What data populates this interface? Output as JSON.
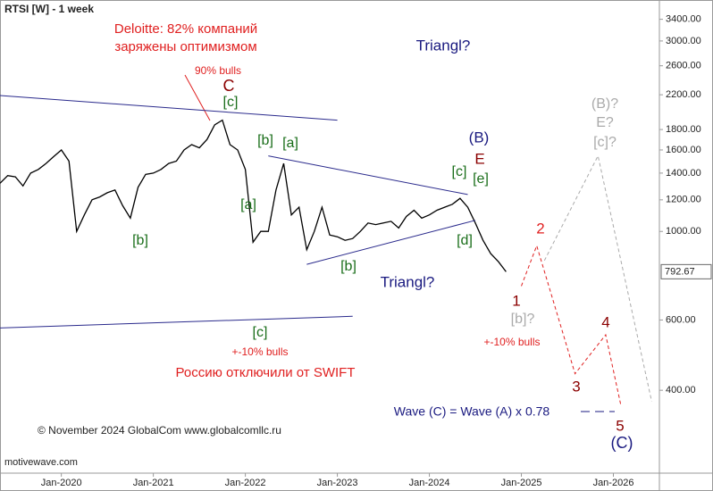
{
  "chart_data": {
    "type": "line",
    "title": "RTSI [W] - 1 week",
    "footer": "© November 2024 GlobalCom www.globalcomllc.ru",
    "watermark": "motivewave.com",
    "log_scale": true,
    "grid": false,
    "color": "#000000",
    "x": [
      "2019-05",
      "2019-06",
      "2019-07",
      "2019-08",
      "2019-09",
      "2019-10",
      "2019-11",
      "2019-12",
      "2020-01",
      "2020-02",
      "2020-03",
      "2020-04",
      "2020-05",
      "2020-06",
      "2020-07",
      "2020-08",
      "2020-09",
      "2020-10",
      "2020-11",
      "2020-12",
      "2021-01",
      "2021-02",
      "2021-03",
      "2021-04",
      "2021-05",
      "2021-06",
      "2021-07",
      "2021-08",
      "2021-09",
      "2021-10",
      "2021-11",
      "2021-12",
      "2022-01",
      "2022-02",
      "2022-03",
      "2022-04",
      "2022-05",
      "2022-06",
      "2022-07",
      "2022-08",
      "2022-09",
      "2022-10",
      "2022-11",
      "2022-12",
      "2023-01",
      "2023-02",
      "2023-03",
      "2023-04",
      "2023-05",
      "2023-06",
      "2023-07",
      "2023-08",
      "2023-09",
      "2023-10",
      "2023-11",
      "2023-12",
      "2024-01",
      "2024-02",
      "2024-03",
      "2024-04",
      "2024-05",
      "2024-06",
      "2024-07",
      "2024-08",
      "2024-09",
      "2024-10",
      "2024-11"
    ],
    "values": [
      1320,
      1380,
      1370,
      1300,
      1400,
      1430,
      1480,
      1540,
      1600,
      1500,
      1000,
      1100,
      1200,
      1220,
      1250,
      1270,
      1160,
      1080,
      1290,
      1390,
      1400,
      1430,
      1480,
      1500,
      1600,
      1650,
      1620,
      1700,
      1850,
      1900,
      1650,
      1600,
      1430,
      940,
      1000,
      1000,
      1270,
      1480,
      1100,
      1150,
      900,
      1000,
      1150,
      980,
      970,
      950,
      960,
      1000,
      1050,
      1040,
      1050,
      1060,
      1020,
      1090,
      1130,
      1080,
      1100,
      1130,
      1150,
      1170,
      1210,
      1150,
      1050,
      950,
      880,
      840,
      792.67
    ],
    "xlim": [
      "2019-05",
      "2026-07"
    ],
    "xticks": [
      {
        "value": "2020-01",
        "label": "Jan-2020"
      },
      {
        "value": "2021-01",
        "label": "Jan-2021"
      },
      {
        "value": "2022-01",
        "label": "Jan-2022"
      },
      {
        "value": "2023-01",
        "label": "Jan-2023"
      },
      {
        "value": "2024-01",
        "label": "Jan-2024"
      },
      {
        "value": "2025-01",
        "label": "Jan-2025"
      },
      {
        "value": "2026-01",
        "label": "Jan-2026"
      }
    ],
    "ylim": [
      248,
      3800
    ],
    "yticks": [
      {
        "value": 400,
        "label": "400.00"
      },
      {
        "value": 600,
        "label": "600.00"
      },
      {
        "value": 1000,
        "label": "1000.00"
      },
      {
        "value": 1200,
        "label": "1200.00"
      },
      {
        "value": 1400,
        "label": "1400.00"
      },
      {
        "value": 1600,
        "label": "1600.00"
      },
      {
        "value": 1800,
        "label": "1800.00"
      },
      {
        "value": 2200,
        "label": "2200.00"
      },
      {
        "value": 2600,
        "label": "2600.00"
      },
      {
        "value": 3000,
        "label": "3000.00"
      },
      {
        "value": 3400,
        "label": "3400.00"
      }
    ],
    "trendlines": [
      {
        "x": [
          "2019-05",
          "2023-01"
        ],
        "values": [
          2190,
          1900
        ],
        "color": "#2a2a8c"
      },
      {
        "x": [
          "2019-05",
          "2023-03"
        ],
        "values": [
          573,
          613
        ],
        "color": "#2a2a8c"
      },
      {
        "x": [
          "2022-04",
          "2024-06"
        ],
        "values": [
          1546,
          1237
        ],
        "color": "#2a2a8c"
      },
      {
        "x": [
          "2022-09",
          "2024-07"
        ],
        "values": [
          827,
          1066
        ],
        "color": "#2a2a8c"
      }
    ],
    "projections": [
      {
        "x": [
          "2025-01",
          "2025-03",
          "2025-08",
          "2025-12",
          "2026-02"
        ],
        "values": [
          730,
          921,
          440,
          551,
          365
        ],
        "color": "#e02020"
      },
      {
        "x": [
          "2025-04",
          "2025-11",
          "2026-06"
        ],
        "values": [
          845,
          1546,
          375
        ],
        "color": "#aaaaaa"
      }
    ],
    "annotations": [
      {
        "text": "Deloitte: 82% компаний",
        "color": "#e02020"
      },
      {
        "text": "заряжены оптимизмом",
        "color": "#e02020"
      },
      {
        "text": "90% bulls",
        "color": "#e02020"
      },
      {
        "text": "C",
        "color": "#8b0000"
      },
      {
        "text": "[c]",
        "color": "#1a6e1a"
      },
      {
        "text": "[b]",
        "color": "#1a6e1a"
      },
      {
        "text": "[a]",
        "color": "#1a6e1a"
      },
      {
        "text": "[a]",
        "color": "#1a6e1a"
      },
      {
        "text": "[b]",
        "color": "#1a6e1a"
      },
      {
        "text": "[c]",
        "color": "#1a6e1a"
      },
      {
        "text": "+-10% bulls",
        "color": "#e02020"
      },
      {
        "text": "Россию отключили от SWIFT",
        "color": "#e02020"
      },
      {
        "text": "Triangl?",
        "color": "#1a1a80"
      },
      {
        "text": "Triangl?",
        "color": "#1a1a80"
      },
      {
        "text": "[b]",
        "color": "#1a6e1a"
      },
      {
        "text": "(B)",
        "color": "#1a1a80"
      },
      {
        "text": "E",
        "color": "#8b0000"
      },
      {
        "text": "[c]",
        "color": "#1a6e1a"
      },
      {
        "text": "[e]",
        "color": "#1a6e1a"
      },
      {
        "text": "[d]",
        "color": "#1a6e1a"
      },
      {
        "text": "1",
        "color": "#8b0000"
      },
      {
        "text": "[b]?",
        "color": "#aaaaaa"
      },
      {
        "text": "+-10% bulls",
        "color": "#e02020"
      },
      {
        "text": "2",
        "color": "#e02020"
      },
      {
        "text": "3",
        "color": "#8b0000"
      },
      {
        "text": "4",
        "color": "#8b0000"
      },
      {
        "text": "5",
        "color": "#8b0000"
      },
      {
        "text": "(C)",
        "color": "#1a1a80"
      },
      {
        "text": "(B)?",
        "color": "#aaaaaa"
      },
      {
        "text": "E?",
        "color": "#aaaaaa"
      },
      {
        "text": "[c]?",
        "color": "#aaaaaa"
      },
      {
        "text": "Wave (C) = Wave (A) x 0.78",
        "color": "#1a1a80"
      }
    ]
  }
}
